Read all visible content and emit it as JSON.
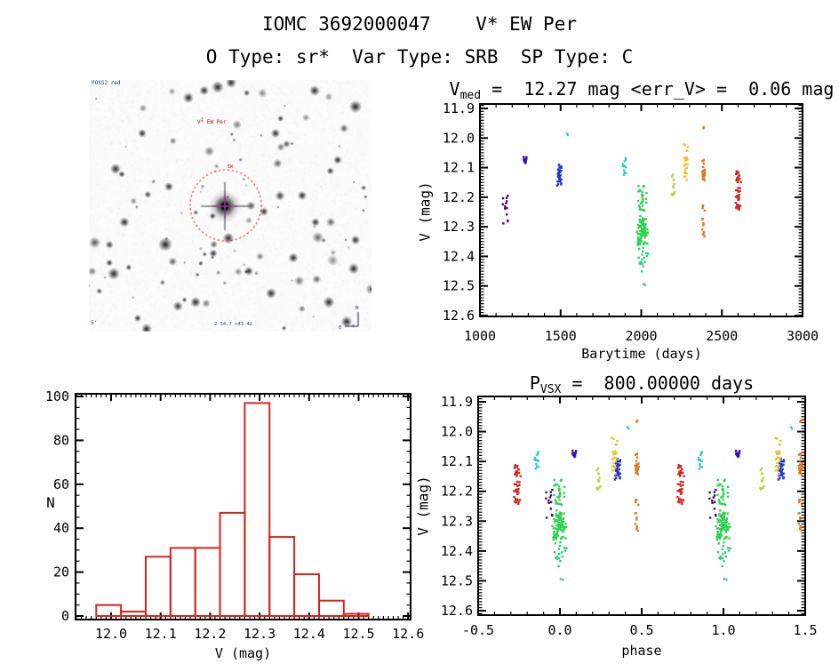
{
  "header": {
    "title": "IOMC 3692000047    V* EW Per",
    "subtitle": "O Type: sr*  Var Type: SRB  SP Type: C"
  },
  "finder": {
    "survey_label": "POSS2 red",
    "target_label": "V* EW Per",
    "marker_label": "EW",
    "coord_label": "2 54.7 +43 41",
    "scale_label": "5'",
    "circle_color": "#cc2222",
    "crosshair_color": "#a53a9e"
  },
  "chart_data": [
    {
      "id": "lightcurve",
      "type": "scatter",
      "title_prefix": "V",
      "title_sub": "med",
      "title_rest": " =  12.27 mag <err_V> =  0.06 mag",
      "v_med_mag": 12.27,
      "err_v_mag": 0.06,
      "xlabel": "Barytime (days)",
      "ylabel": "V (mag)",
      "xlim": [
        1000,
        3000
      ],
      "ylim_mag": [
        11.9,
        12.6
      ],
      "xticks": [
        1000,
        1500,
        2000,
        2500,
        3000
      ],
      "xtick_labels": [
        "1000",
        "1500",
        "2000",
        "2500",
        "3000"
      ],
      "yticks": [
        11.9,
        12.0,
        12.1,
        12.2,
        12.3,
        12.4,
        12.5,
        12.6
      ],
      "ytick_labels": [
        "11.9",
        "12.0",
        "12.1",
        "12.2",
        "12.3",
        "12.4",
        "12.5",
        "12.6"
      ],
      "clusters": [
        {
          "t_days": 1158,
          "color": "#470b63",
          "t_spread_days": 22,
          "segments": [
            {
              "v_min": 12.175,
              "v_max": 12.325,
              "n": 13
            }
          ]
        },
        {
          "t_days": 1281,
          "color": "#3a12ae",
          "t_spread_days": 14,
          "segments": [
            {
              "v_min": 12.062,
              "v_max": 12.085,
              "n": 14
            }
          ]
        },
        {
          "t_days": 1492,
          "color": "#1e35cf",
          "t_spread_days": 18,
          "segments": [
            {
              "v_min": 12.088,
              "v_max": 12.148,
              "n": 26
            },
            {
              "v_min": 12.152,
              "v_max": 12.168,
              "n": 4
            }
          ]
        },
        {
          "t_days": 1540,
          "color": "#35c8e0",
          "t_spread_days": 8,
          "segments": [
            {
              "v_min": 11.978,
              "v_max": 11.99,
              "n": 2
            }
          ]
        },
        {
          "t_days": 1895,
          "color": "#2fc9c9",
          "t_spread_days": 20,
          "segments": [
            {
              "v_min": 12.056,
              "v_max": 12.125,
              "n": 12
            }
          ]
        },
        {
          "t_days": 2008,
          "color": "#2ed24f",
          "t_spread_days": 40,
          "segments": [
            {
              "v_min": 12.156,
              "v_max": 12.254,
              "n": 30
            },
            {
              "v_min": 12.254,
              "v_max": 12.376,
              "n": 100,
              "gauss": true
            },
            {
              "v_min": 12.376,
              "v_max": 12.456,
              "n": 15,
              "color": "#2fca77"
            },
            {
              "v_min": 12.492,
              "v_max": 12.504,
              "n": 2,
              "color": "#35cb8d"
            }
          ]
        },
        {
          "t_days": 2201,
          "color": "#b5d435",
          "t_spread_days": 18,
          "segments": [
            {
              "v_min": 12.12,
              "v_max": 12.2,
              "n": 13
            }
          ]
        },
        {
          "t_days": 2278,
          "color": "#e8c52e",
          "t_spread_days": 18,
          "segments": [
            {
              "v_min": 12.015,
              "v_max": 12.055,
              "n": 5
            },
            {
              "v_min": 12.065,
              "v_max": 12.125,
              "n": 20
            },
            {
              "v_min": 12.13,
              "v_max": 12.142,
              "n": 3
            }
          ]
        },
        {
          "t_days": 2385,
          "color": "#e0761f",
          "t_spread_days": 14,
          "segments": [
            {
              "v_min": 11.962,
              "v_max": 11.972,
              "n": 2
            },
            {
              "v_min": 12.068,
              "v_max": 12.155,
              "n": 22
            },
            {
              "v_min": 12.22,
              "v_max": 12.335,
              "n": 14
            }
          ]
        },
        {
          "t_days": 2600,
          "color": "#d42420",
          "t_spread_days": 18,
          "segments": [
            {
              "v_min": 12.112,
              "v_max": 12.155,
              "n": 16
            },
            {
              "v_min": 12.168,
              "v_max": 12.242,
              "n": 26
            }
          ]
        }
      ]
    },
    {
      "id": "histogram",
      "type": "bar",
      "xlabel": "V (mag)",
      "ylabel": "N",
      "bar_color": "#d42420",
      "bins_start": 11.97,
      "bin_width": 0.05,
      "counts": [
        5,
        2,
        27,
        31,
        31,
        47,
        97,
        36,
        19,
        7,
        1
      ],
      "xlim": [
        11.93,
        12.61
      ],
      "ylim": [
        0,
        100
      ],
      "xticks": [
        12.0,
        12.1,
        12.2,
        12.3,
        12.4,
        12.5,
        12.6
      ],
      "xtick_labels": [
        "12.0",
        "12.1",
        "12.2",
        "12.3",
        "12.4",
        "12.5",
        "12.6"
      ],
      "yticks": [
        0,
        20,
        40,
        60,
        80,
        100
      ],
      "ytick_labels": [
        "0",
        "20",
        "40",
        "60",
        "80",
        "100"
      ]
    },
    {
      "id": "phase",
      "type": "scatter",
      "title_prefix": "P",
      "title_sub": "VSX",
      "title_rest": " =  800.00000 days",
      "period_days": 800,
      "epoch_zero_days": 2010,
      "uses_clusters_from": "lightcurve",
      "xlabel": "phase",
      "ylabel": "V (mag)",
      "xlim": [
        -0.5,
        1.5
      ],
      "xticks": [
        -0.5,
        0.0,
        0.5,
        1.0,
        1.5
      ],
      "xtick_labels": [
        "-0.5",
        "0.0",
        "0.5",
        "1.0",
        "1.5"
      ],
      "yticks": [
        11.9,
        12.0,
        12.1,
        12.2,
        12.3,
        12.4,
        12.5,
        12.6
      ],
      "ytick_labels": [
        "11.9",
        "12.0",
        "12.1",
        "12.2",
        "12.3",
        "12.4",
        "12.5",
        "12.6"
      ]
    }
  ]
}
